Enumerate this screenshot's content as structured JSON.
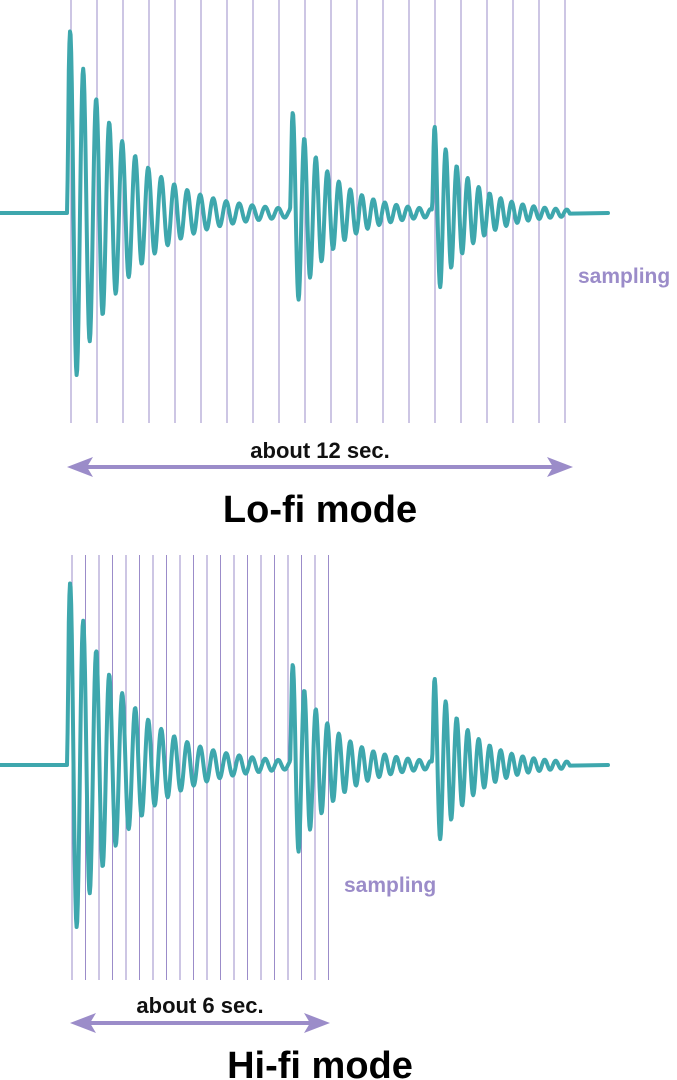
{
  "colors": {
    "waveform": "#3ea7ad",
    "sampling": "#9b8cc9",
    "arrow": "#9b8cc9",
    "text": "#000000"
  },
  "panels": [
    {
      "id": "lofi",
      "mode_label": "Lo-fi mode",
      "duration_label": "about 12 sec.",
      "sampling_label": "sampling",
      "sample_line_count": 20
    },
    {
      "id": "hifi",
      "mode_label": "Hi-fi mode",
      "duration_label": "about 6 sec.",
      "sampling_label": "sampling",
      "sample_line_count": 20
    }
  ]
}
